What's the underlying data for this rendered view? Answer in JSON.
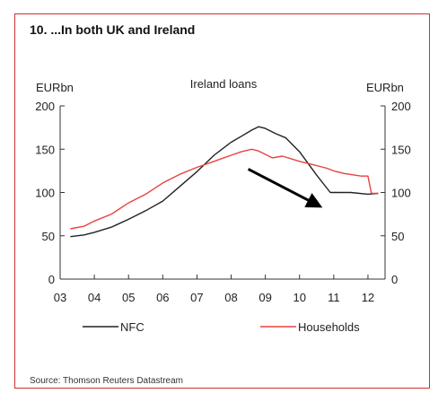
{
  "title": "10. ...In both UK and Ireland",
  "source": "Source: Thomson Reuters Datastream",
  "colors": {
    "frame": "#d0312d",
    "nfc": "#222222",
    "households": "#e8423f",
    "arrow": "#000000"
  },
  "chart_data": {
    "type": "line",
    "subtitle": "Ireland loans",
    "y_unit_left": "EURbn",
    "y_unit_right": "EURbn",
    "ylim": [
      0,
      200
    ],
    "yticks": [
      0,
      50,
      100,
      150,
      200
    ],
    "xlim": [
      2003,
      2012.5
    ],
    "xticks": [
      2003,
      2004,
      2005,
      2006,
      2007,
      2008,
      2009,
      2010,
      2011,
      2012
    ],
    "xtick_labels": [
      "03",
      "04",
      "05",
      "06",
      "07",
      "08",
      "09",
      "10",
      "11",
      "12"
    ],
    "grid": false,
    "legend_position": "bottom",
    "series": [
      {
        "name": "NFC",
        "color": "#222222",
        "points": [
          [
            2003.3,
            49
          ],
          [
            2003.7,
            51
          ],
          [
            2004.0,
            54
          ],
          [
            2004.5,
            60
          ],
          [
            2005.0,
            69
          ],
          [
            2005.5,
            79
          ],
          [
            2006.0,
            90
          ],
          [
            2006.5,
            107
          ],
          [
            2007.0,
            124
          ],
          [
            2007.5,
            143
          ],
          [
            2008.0,
            158
          ],
          [
            2008.3,
            165
          ],
          [
            2008.6,
            172
          ],
          [
            2008.8,
            176
          ],
          [
            2009.0,
            174
          ],
          [
            2009.3,
            168
          ],
          [
            2009.6,
            163
          ],
          [
            2010.0,
            147
          ],
          [
            2010.5,
            120
          ],
          [
            2010.9,
            100
          ],
          [
            2011.5,
            100
          ],
          [
            2012.0,
            98
          ],
          [
            2012.3,
            99
          ]
        ]
      },
      {
        "name": "Households",
        "color": "#e8423f",
        "points": [
          [
            2003.3,
            58
          ],
          [
            2003.7,
            61
          ],
          [
            2004.0,
            67
          ],
          [
            2004.5,
            75
          ],
          [
            2005.0,
            88
          ],
          [
            2005.5,
            98
          ],
          [
            2006.0,
            111
          ],
          [
            2006.5,
            121
          ],
          [
            2007.0,
            129
          ],
          [
            2007.5,
            136
          ],
          [
            2008.0,
            143
          ],
          [
            2008.3,
            147
          ],
          [
            2008.6,
            150
          ],
          [
            2008.8,
            148
          ],
          [
            2009.0,
            144
          ],
          [
            2009.2,
            140
          ],
          [
            2009.5,
            142
          ],
          [
            2010.0,
            136
          ],
          [
            2010.4,
            132
          ],
          [
            2010.8,
            128
          ],
          [
            2011.0,
            125
          ],
          [
            2011.3,
            122
          ],
          [
            2011.8,
            119
          ],
          [
            2012.0,
            119
          ],
          [
            2012.1,
            99
          ],
          [
            2012.3,
            99
          ]
        ]
      }
    ],
    "annotations": [
      {
        "type": "arrow",
        "from": [
          2008.5,
          127
        ],
        "to": [
          2010.6,
          84
        ]
      }
    ]
  }
}
